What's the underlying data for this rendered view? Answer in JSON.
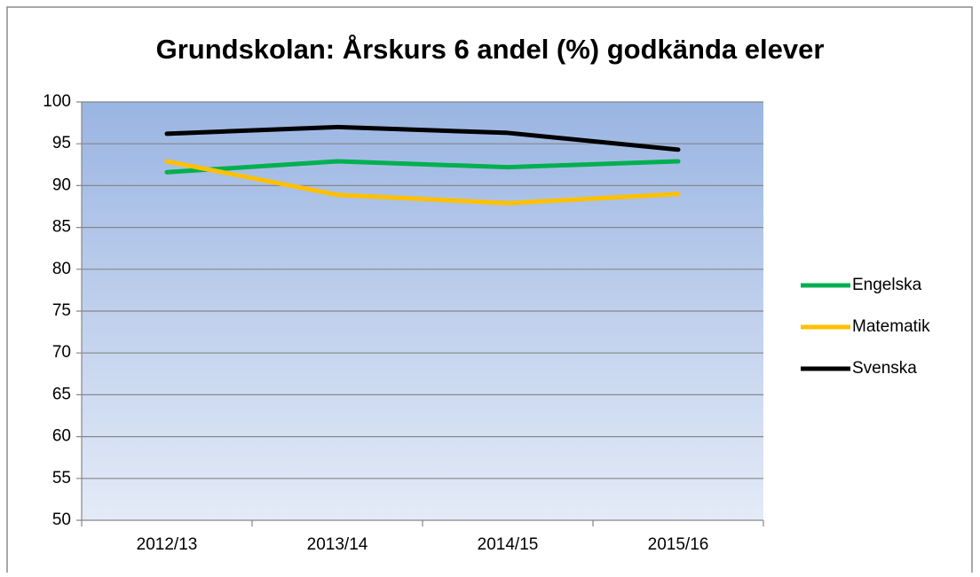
{
  "chart_data": {
    "type": "line",
    "title": "Grundskolan: Årskurs 6 andel (%) godkända elever",
    "categories": [
      "2012/13",
      "2013/14",
      "2014/15",
      "2015/16"
    ],
    "series": [
      {
        "name": "Engelska",
        "color": "#00b050",
        "values": [
          91.6,
          92.9,
          92.2,
          92.9
        ]
      },
      {
        "name": "Matematik",
        "color": "#ffc000",
        "values": [
          92.9,
          88.9,
          87.9,
          89.0
        ]
      },
      {
        "name": "Svenska",
        "color": "#000000",
        "values": [
          96.2,
          97.0,
          96.3,
          94.3
        ]
      }
    ],
    "ylim": [
      50,
      100
    ],
    "yticks": [
      50,
      55,
      60,
      65,
      70,
      75,
      80,
      85,
      90,
      95,
      100
    ],
    "grid": true,
    "legend": "right"
  }
}
